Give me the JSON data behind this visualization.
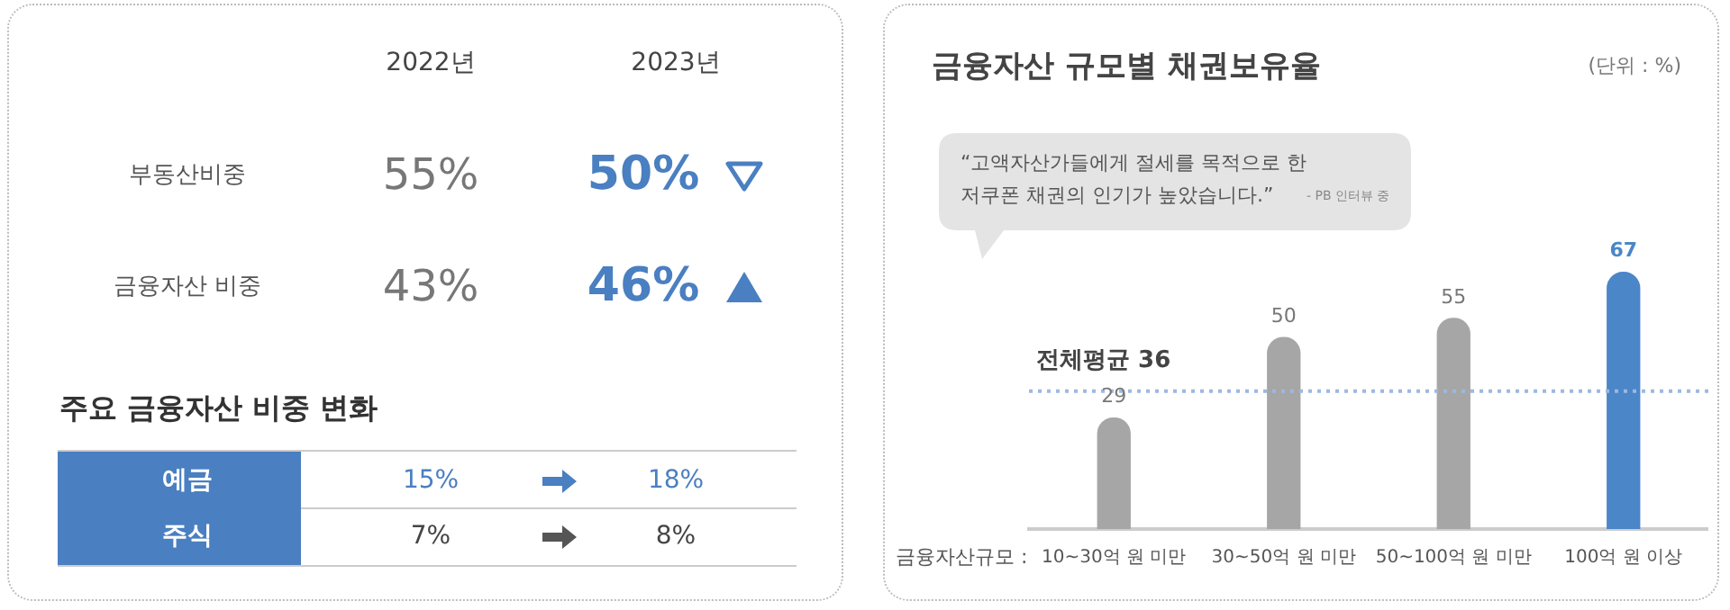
{
  "chart_data": [
    {
      "type": "other",
      "title": "주요 금융자산 비중 변화",
      "annotations": [
        "2022년",
        "2023년",
        "부동산비중",
        "55%",
        "50%",
        "금융자산 비중",
        "43%",
        "46%",
        "예금",
        "15%",
        "18%",
        "주식",
        "7%",
        "8%"
      ]
    },
    {
      "type": "bar",
      "title": "금융자산 규모별 채권보유율",
      "xlabel": "금융자산규모 :",
      "annotations": [
        "(단위 : %)",
        "“고액자산가들에게 절세를 목적으로 한\n저쿠폰 채권의 인기가 높았습니다.”",
        "- PB 인터뷰 중"
      ],
      "categories": [
        "10~30억 원 미만",
        "30~50억 원 미만",
        "50~100억 원 미만",
        "100억 원 이상"
      ],
      "values": [
        29,
        50,
        55,
        67
      ],
      "colors": [
        "#a6a6a6",
        "#a6a6a6",
        "#a6a6a6",
        "#4a86c8"
      ],
      "data_labels": true,
      "grid": false,
      "legend": false,
      "ref_lines": [
        {
          "axis": "y",
          "value": 36,
          "label": "전체평균 36",
          "color": "#9db8e0",
          "line_style": "dotted"
        }
      ]
    }
  ]
}
